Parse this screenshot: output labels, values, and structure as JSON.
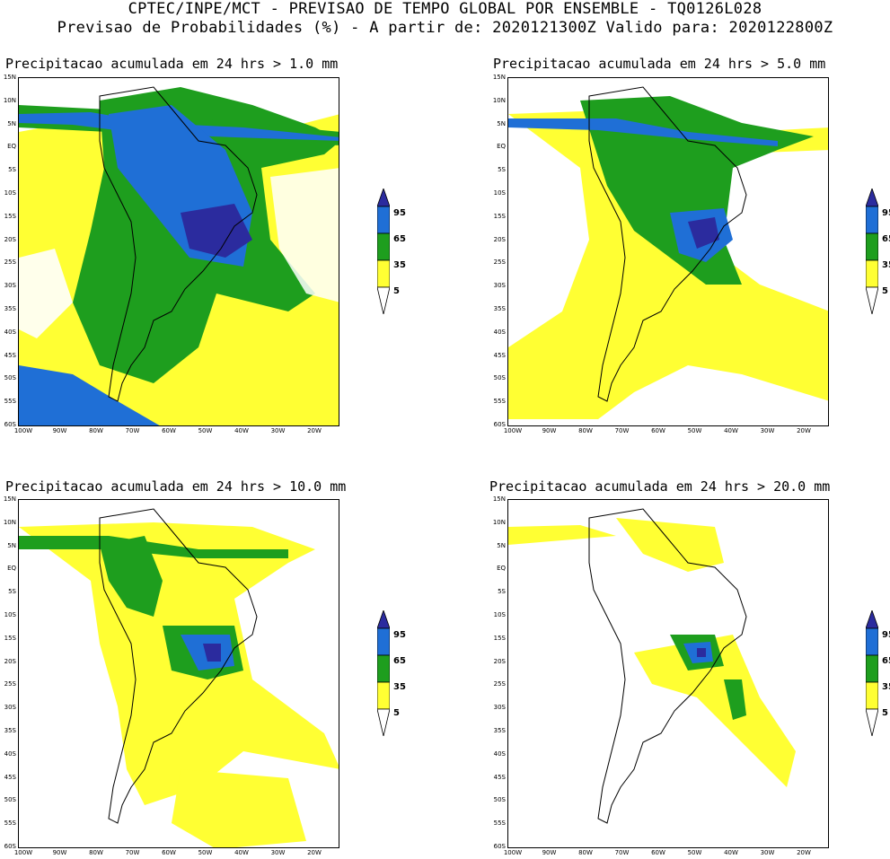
{
  "header": {
    "line1": "CPTEC/INPE/MCT - PREVISAO DE TEMPO GLOBAL POR ENSEMBLE - TQ0126L028",
    "line2": "Previsao de Probabilidades (%) -  A partir de: 2020121300Z  Valido para: 2020122800Z"
  },
  "panels": [
    {
      "title": "Precipitacao acumulada em 24 hrs > 1.0 mm"
    },
    {
      "title": "Precipitacao acumulada em 24 hrs > 5.0 mm"
    },
    {
      "title": "Precipitacao acumulada em 24 hrs > 10.0 mm"
    },
    {
      "title": "Precipitacao acumulada em 24 hrs > 20.0 mm"
    }
  ],
  "lat_labels": [
    "15N",
    "10N",
    "5N",
    "EQ",
    "5S",
    "10S",
    "15S",
    "20S",
    "25S",
    "30S",
    "35S",
    "40S",
    "45S",
    "50S",
    "55S",
    "60S"
  ],
  "lon_labels": [
    "100W",
    "90W",
    "80W",
    "70W",
    "60W",
    "50W",
    "40W",
    "30W",
    "20W"
  ],
  "colorbar": {
    "labels": [
      "95",
      "65",
      "35",
      "5"
    ],
    "colors": {
      "c95": "#2b2b9e",
      "c65": "#1f6fd6",
      "c35": "#1e9e1e",
      "c5": "#ffff33"
    }
  }
}
